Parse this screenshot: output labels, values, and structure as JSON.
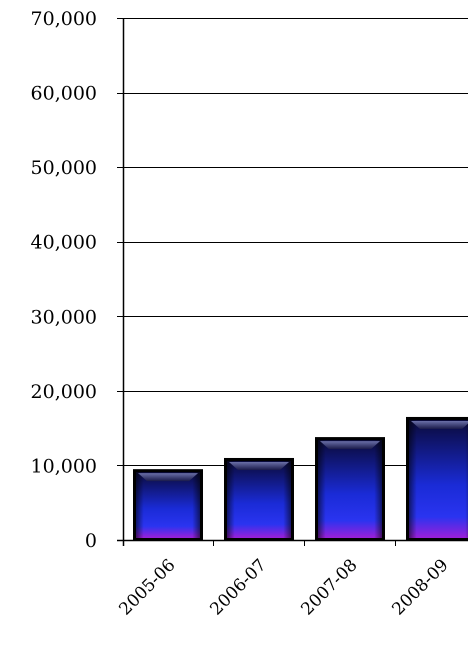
{
  "chart_data": {
    "type": "bar",
    "title": "",
    "xlabel": "",
    "ylabel": "",
    "categories": [
      "2005-06",
      "2006-07",
      "2007-08",
      "2008-09"
    ],
    "values": [
      9500,
      11000,
      13800,
      16500
    ],
    "ylim": [
      0,
      70000
    ],
    "yticks": [
      0,
      10000,
      20000,
      30000,
      40000,
      50000,
      60000,
      70000
    ],
    "ytick_labels": [
      "0",
      "10,000",
      "20,000",
      "30,000",
      "40,000",
      "50,000",
      "60,000",
      "70,000"
    ],
    "grid": true,
    "bar_color_top": "#0a0a3a",
    "bar_color_mid": "#1a2bd6",
    "bar_color_bottom": "#9b1fd8"
  }
}
